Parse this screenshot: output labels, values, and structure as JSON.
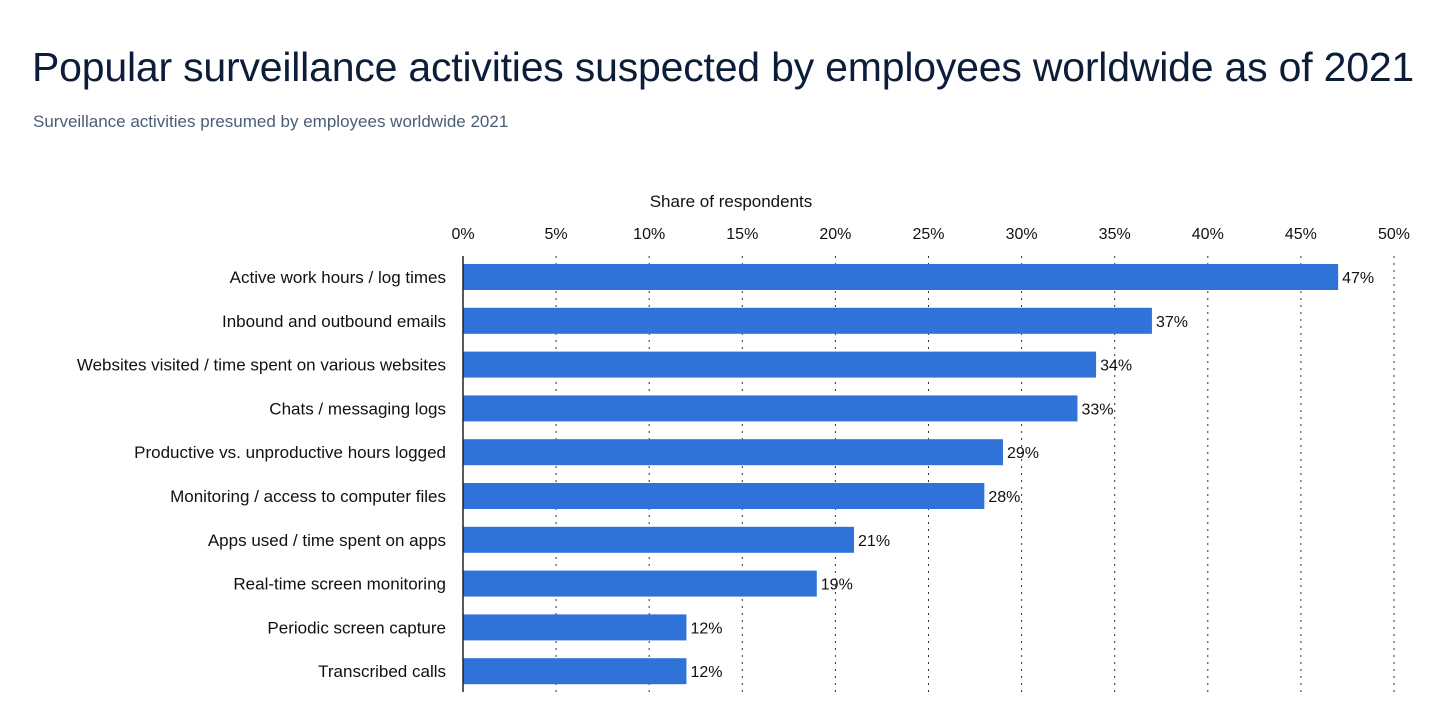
{
  "title": "Popular surveillance activities suspected by employees worldwide as of 2021",
  "subtitle": "Surveillance activities presumed by employees worldwide 2021",
  "colors": {
    "bar": "#2f73d9",
    "title": "#0c1d3a",
    "subtitle": "#4a5d77"
  },
  "chart_data": {
    "type": "bar",
    "orientation": "horizontal",
    "xlabel": "Share of respondents",
    "xlim": [
      0,
      50
    ],
    "x_ticks": [
      "0%",
      "5%",
      "10%",
      "15%",
      "20%",
      "25%",
      "30%",
      "35%",
      "40%",
      "45%",
      "50%"
    ],
    "grid": true,
    "categories": [
      "Active work hours / log times",
      "Inbound and outbound emails",
      "Websites visited / time spent on various websites",
      "Chats / messaging logs",
      "Productive vs. unproductive hours logged",
      "Monitoring / access to computer files",
      "Apps used / time spent on apps",
      "Real-time screen monitoring",
      "Periodic screen capture",
      "Transcribed calls"
    ],
    "values": [
      47,
      37,
      34,
      33,
      29,
      28,
      21,
      19,
      12,
      12
    ],
    "value_labels": [
      "47%",
      "37%",
      "34%",
      "33%",
      "29%",
      "28%",
      "21%",
      "19%",
      "12%",
      "12%"
    ]
  }
}
